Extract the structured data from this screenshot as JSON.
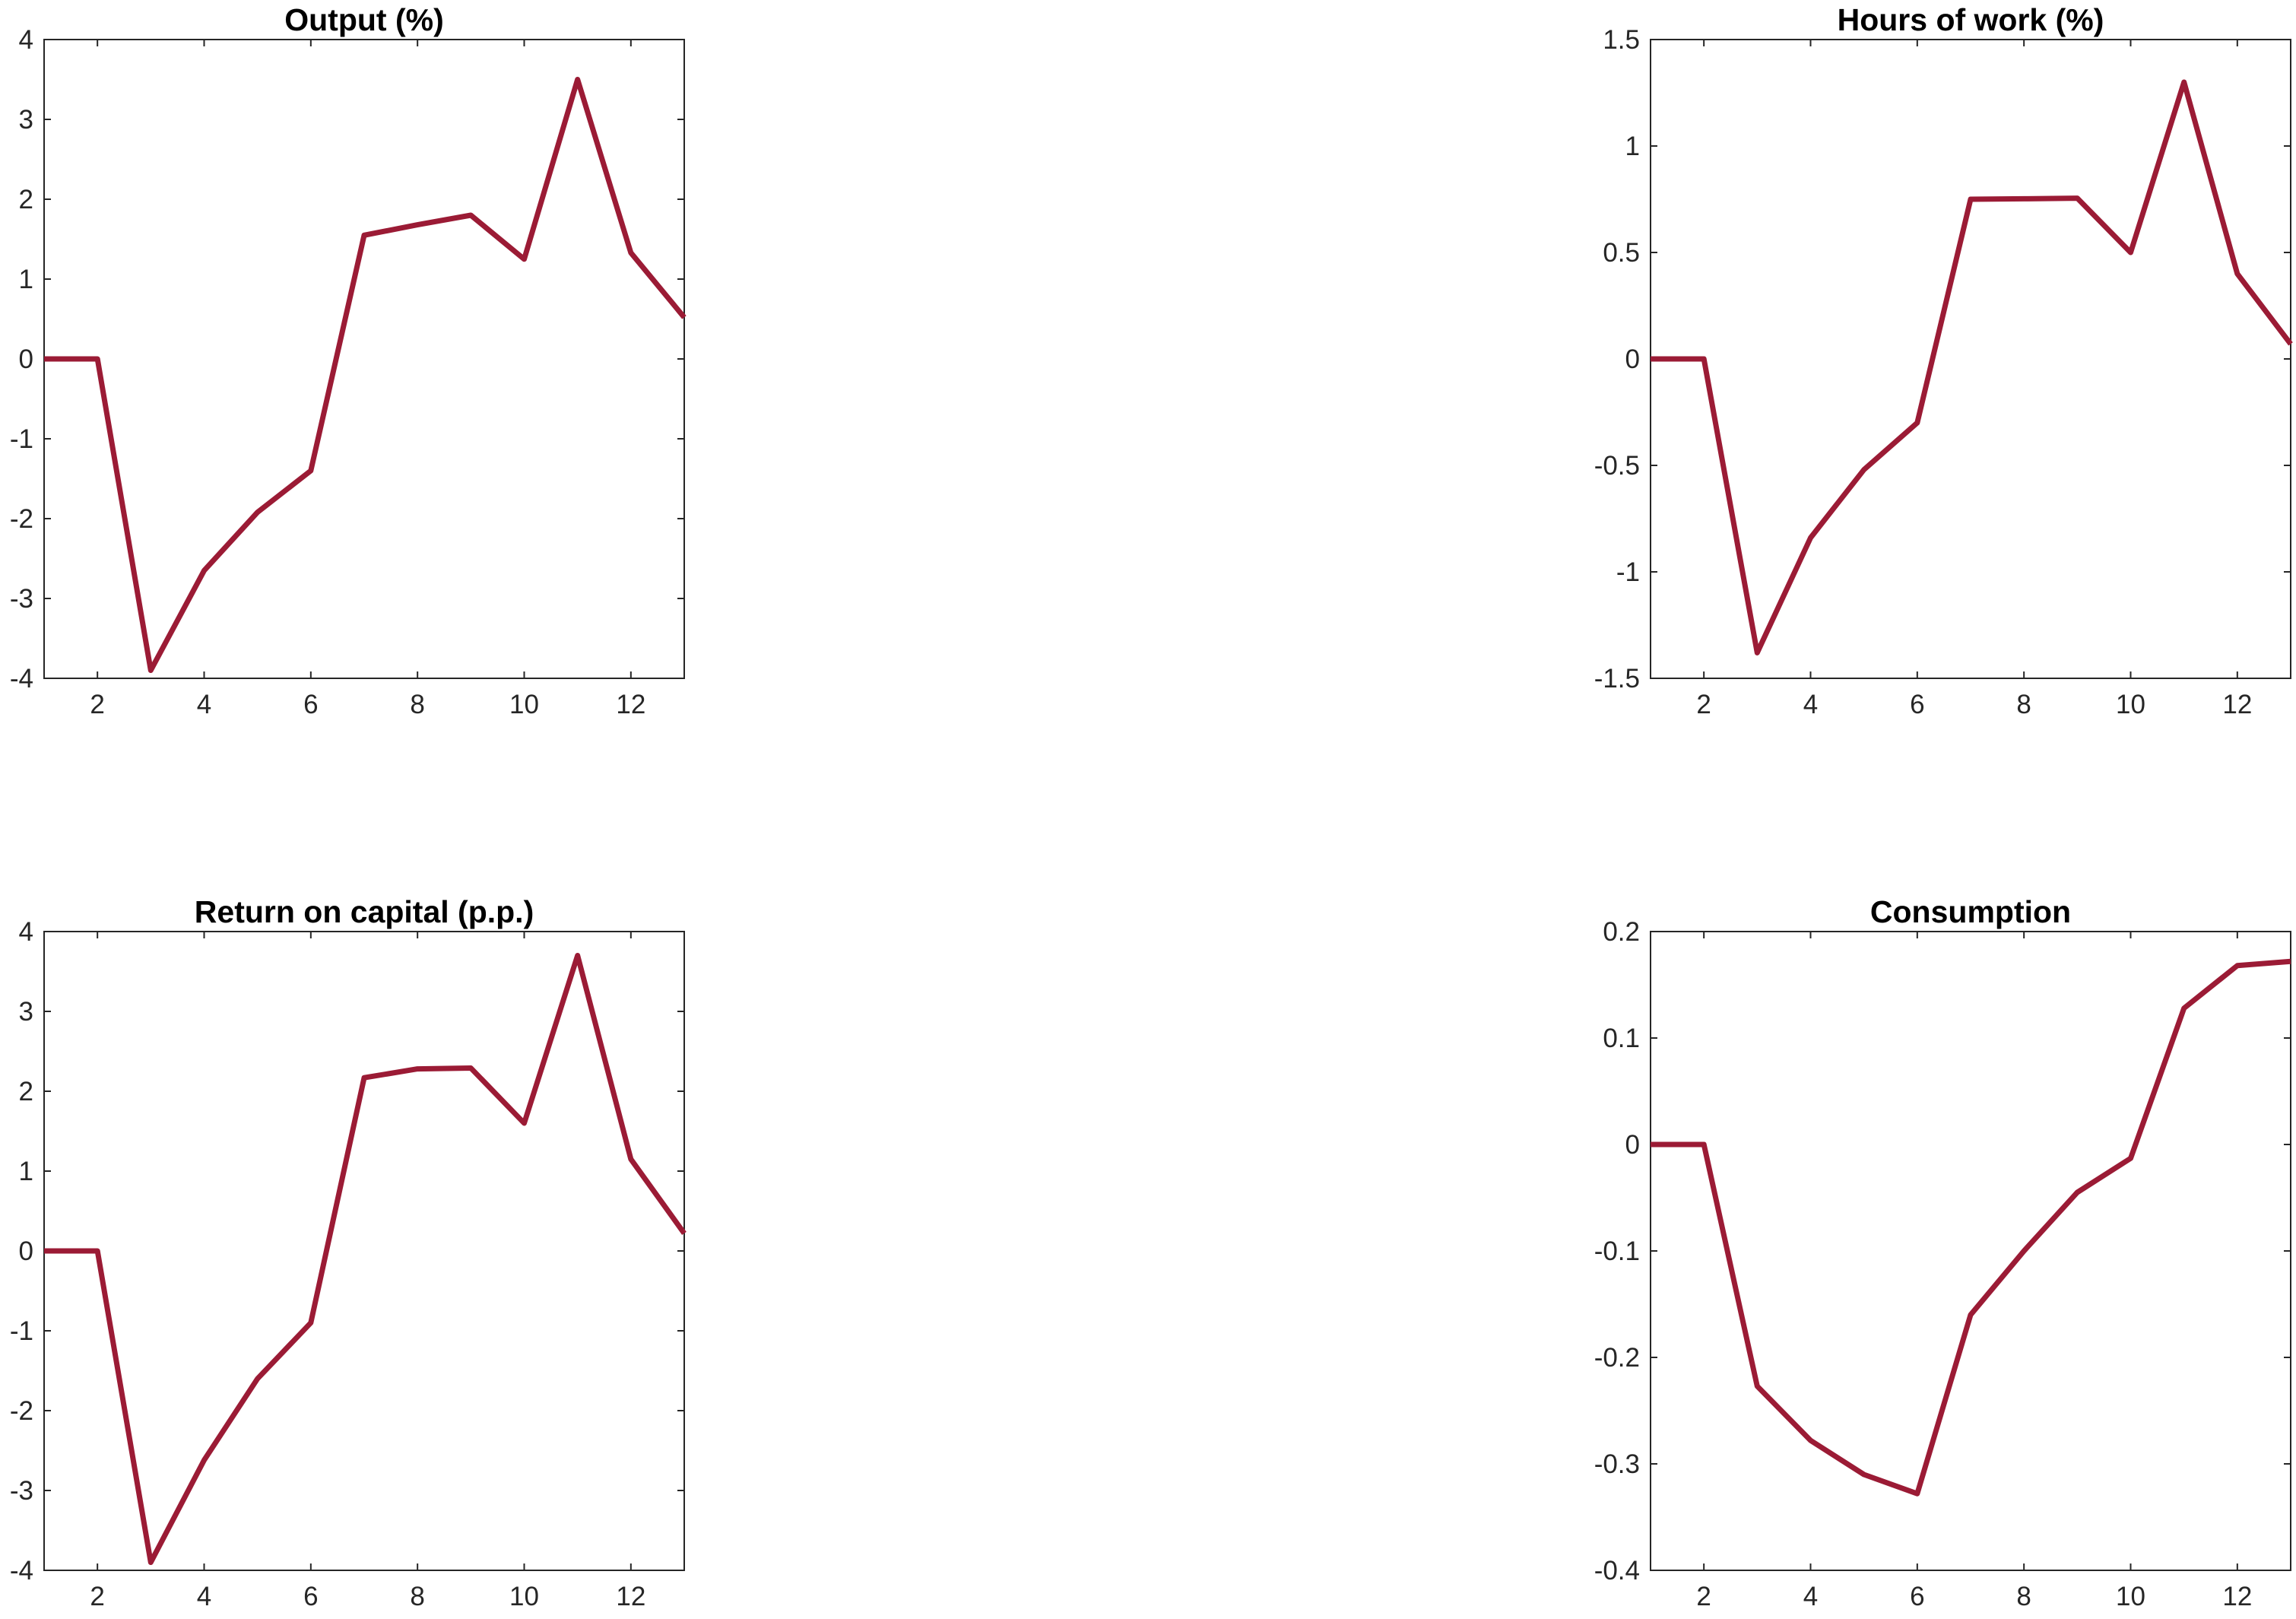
{
  "chart_data": [
    {
      "type": "line",
      "title": "Output (%)",
      "xlabel": "",
      "ylabel": "",
      "xlim": [
        1,
        13
      ],
      "ylim": [
        -4,
        4
      ],
      "xticks": [
        2,
        4,
        6,
        8,
        10,
        12
      ],
      "yticks": [
        -4,
        -3,
        -2,
        -1,
        0,
        1,
        2,
        3,
        4
      ],
      "ytick_labels": [
        "-4",
        "-3",
        "-2",
        "-1",
        "0",
        "1",
        "2",
        "3",
        "4"
      ],
      "grid": false,
      "x": [
        1,
        2,
        3,
        4,
        5,
        6,
        7,
        8,
        9,
        10,
        11,
        12,
        13
      ],
      "series": [
        {
          "values": [
            0,
            0,
            -3.9,
            -2.65,
            -1.92,
            -1.4,
            1.55,
            1.68,
            1.8,
            1.25,
            3.5,
            1.33,
            0.52
          ]
        }
      ]
    },
    {
      "type": "line",
      "title": "Hours of work (%)",
      "xlabel": "",
      "ylabel": "",
      "xlim": [
        1,
        13
      ],
      "ylim": [
        -1.5,
        1.5
      ],
      "xticks": [
        2,
        4,
        6,
        8,
        10,
        12
      ],
      "yticks": [
        -1.5,
        -1,
        -0.5,
        0,
        0.5,
        1,
        1.5
      ],
      "ytick_labels": [
        "-1.5",
        "-1",
        "-0.5",
        "0",
        "0.5",
        "1",
        "1.5"
      ],
      "grid": false,
      "x": [
        1,
        2,
        3,
        4,
        5,
        6,
        7,
        8,
        9,
        10,
        11,
        12,
        13
      ],
      "series": [
        {
          "values": [
            0,
            0,
            -1.38,
            -0.84,
            -0.52,
            -0.3,
            0.75,
            0.752,
            0.755,
            0.5,
            1.3,
            0.4,
            0.07
          ]
        }
      ]
    },
    {
      "type": "line",
      "title": "Return on capital (p.p.)",
      "xlabel": "",
      "ylabel": "",
      "xlim": [
        1,
        13
      ],
      "ylim": [
        -4,
        4
      ],
      "xticks": [
        2,
        4,
        6,
        8,
        10,
        12
      ],
      "yticks": [
        -4,
        -3,
        -2,
        -1,
        0,
        1,
        2,
        3,
        4
      ],
      "ytick_labels": [
        "-4",
        "-3",
        "-2",
        "-1",
        "0",
        "1",
        "2",
        "3",
        "4"
      ],
      "grid": false,
      "x": [
        1,
        2,
        3,
        4,
        5,
        6,
        7,
        8,
        9,
        10,
        11,
        12,
        13
      ],
      "series": [
        {
          "values": [
            0,
            0,
            -3.9,
            -2.62,
            -1.6,
            -0.9,
            2.17,
            2.28,
            2.29,
            1.6,
            3.7,
            1.15,
            0.22
          ]
        }
      ]
    },
    {
      "type": "line",
      "title": "Consumption",
      "xlabel": "",
      "ylabel": "",
      "xlim": [
        1,
        13
      ],
      "ylim": [
        -0.4,
        0.2
      ],
      "xticks": [
        2,
        4,
        6,
        8,
        10,
        12
      ],
      "yticks": [
        -0.4,
        -0.3,
        -0.2,
        -0.1,
        0,
        0.1,
        0.2
      ],
      "ytick_labels": [
        "-0.4",
        "-0.3",
        "-0.2",
        "-0.1",
        "0",
        "0.1",
        "0.2"
      ],
      "grid": false,
      "x": [
        1,
        2,
        3,
        4,
        5,
        6,
        7,
        8,
        9,
        10,
        11,
        12,
        13
      ],
      "series": [
        {
          "values": [
            0,
            0,
            -0.227,
            -0.278,
            -0.31,
            -0.328,
            -0.16,
            -0.1,
            -0.045,
            -0.013,
            0.128,
            0.168,
            0.172
          ]
        }
      ]
    }
  ],
  "style": {
    "line_color": "#9b1b35",
    "axis_color": "#262626"
  }
}
